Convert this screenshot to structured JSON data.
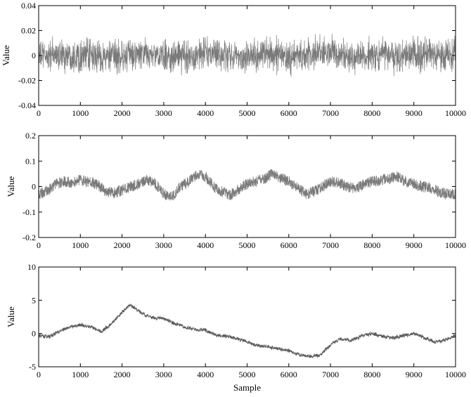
{
  "chart_data": [
    {
      "type": "line",
      "title": "",
      "xlabel": "",
      "ylabel": "Value",
      "xlim": [
        0,
        10000
      ],
      "ylim": [
        -0.04,
        0.04
      ],
      "xticks": [
        0,
        1000,
        2000,
        3000,
        4000,
        5000,
        6000,
        7000,
        8000,
        9000,
        10000
      ],
      "xtick_labels": [
        "0",
        "1000",
        "2000",
        "3000",
        "4000",
        "5000",
        "6000",
        "7000",
        "8000",
        "9000",
        "10000"
      ],
      "yticks": [
        -0.04,
        -0.02,
        0,
        0.02,
        0.04
      ],
      "ytick_labels": [
        "-0.04",
        "-0.02",
        "0",
        "0.02",
        "0.04"
      ],
      "grid": false,
      "legend": "none",
      "series_color": "#7a7a7a",
      "series": [
        {
          "x": [
            0,
            500,
            1000,
            1500,
            2000,
            2500,
            3000,
            3500,
            4000,
            4500,
            5000,
            5500,
            6000,
            6500,
            7000,
            7500,
            8000,
            8500,
            9000,
            9500,
            10000
          ],
          "values": [
            0,
            0.003,
            -0.002,
            0.001,
            -0.003,
            0.002,
            0,
            -0.001,
            0.002,
            -0.002,
            0.001,
            0.003,
            -0.002,
            0,
            0.002,
            -0.001,
            0.001,
            -0.002,
            0.003,
            0,
            -0.001
          ],
          "envelope_high": [
            0.016,
            0.018,
            0.02,
            0.017,
            0.019,
            0.018,
            0.016,
            0.019,
            0.021,
            0.018,
            0.017,
            0.02,
            0.018,
            0.019,
            0.021,
            0.017,
            0.018,
            0.019,
            0.022,
            0.02,
            0.018
          ],
          "envelope_low": [
            -0.017,
            -0.019,
            -0.018,
            -0.02,
            -0.019,
            -0.017,
            -0.018,
            -0.02,
            -0.018,
            -0.017,
            -0.019,
            -0.018,
            -0.02,
            -0.018,
            -0.017,
            -0.019,
            -0.02,
            -0.018,
            -0.021,
            -0.019,
            -0.017
          ]
        }
      ]
    },
    {
      "type": "line",
      "title": "",
      "xlabel": "",
      "ylabel": "Value",
      "xlim": [
        0,
        10000
      ],
      "ylim": [
        -0.2,
        0.2
      ],
      "xticks": [
        0,
        1000,
        2000,
        3000,
        4000,
        5000,
        6000,
        7000,
        8000,
        9000,
        10000
      ],
      "xtick_labels": [
        "0",
        "1000",
        "2000",
        "3000",
        "4000",
        "5000",
        "6000",
        "7000",
        "8000",
        "9000",
        "10000"
      ],
      "yticks": [
        -0.2,
        -0.1,
        0,
        0.1,
        0.2
      ],
      "ytick_labels": [
        "-0.2",
        "-0.1",
        "0",
        "0.1",
        "0.2"
      ],
      "grid": false,
      "legend": "none",
      "series_color": "#7a7a7a",
      "series": [
        {
          "x": [
            0,
            200,
            400,
            600,
            800,
            1000,
            1200,
            1400,
            1600,
            1800,
            2000,
            2200,
            2400,
            2600,
            2800,
            3000,
            3200,
            3400,
            3600,
            3800,
            4000,
            4200,
            4400,
            4600,
            4800,
            5000,
            5200,
            5400,
            5600,
            5800,
            6000,
            6200,
            6400,
            6600,
            6800,
            7000,
            7200,
            7400,
            7600,
            7800,
            8000,
            8200,
            8400,
            8600,
            8800,
            9000,
            9200,
            9400,
            9600,
            9800,
            10000
          ],
          "values": [
            -0.03,
            -0.02,
            0.01,
            0.02,
            0.015,
            0.025,
            0.02,
            0.01,
            -0.02,
            -0.025,
            -0.015,
            0.0,
            0.01,
            0.025,
            0.01,
            -0.03,
            -0.04,
            0.0,
            0.02,
            0.045,
            0.04,
            0.0,
            -0.02,
            -0.035,
            -0.01,
            0.01,
            0.02,
            0.03,
            0.05,
            0.035,
            0.02,
            0.0,
            -0.03,
            -0.02,
            0.0,
            0.02,
            0.015,
            0.0,
            -0.01,
            0.01,
            0.02,
            0.025,
            0.03,
            0.04,
            0.02,
            0.01,
            0.0,
            -0.005,
            -0.02,
            -0.03,
            -0.03
          ],
          "noise_amplitude": 0.022
        }
      ]
    },
    {
      "type": "line",
      "title": "",
      "xlabel": "Sample",
      "ylabel": "Value",
      "xlim": [
        0,
        10000
      ],
      "ylim": [
        -5,
        10
      ],
      "xticks": [
        0,
        1000,
        2000,
        3000,
        4000,
        5000,
        6000,
        7000,
        8000,
        9000,
        10000
      ],
      "xtick_labels": [
        "0",
        "1000",
        "2000",
        "3000",
        "4000",
        "5000",
        "6000",
        "7000",
        "8000",
        "9000",
        "10000"
      ],
      "yticks": [
        -5,
        0,
        5,
        10
      ],
      "ytick_labels": [
        "-5",
        "0",
        "5",
        "10"
      ],
      "grid": false,
      "legend": "none",
      "series_color": "#5a5a5a",
      "series": [
        {
          "x": [
            0,
            250,
            500,
            750,
            1000,
            1250,
            1500,
            1750,
            2000,
            2200,
            2400,
            2600,
            2800,
            3000,
            3250,
            3500,
            3750,
            4000,
            4250,
            4500,
            4750,
            5000,
            5250,
            5500,
            5750,
            6000,
            6250,
            6500,
            6750,
            7000,
            7250,
            7500,
            7750,
            8000,
            8250,
            8500,
            8750,
            9000,
            9250,
            9500,
            9750,
            10000
          ],
          "values": [
            -0.3,
            -0.5,
            0.3,
            1.0,
            1.3,
            1.0,
            0.3,
            1.5,
            3.2,
            4.3,
            3.4,
            2.6,
            2.3,
            2.3,
            1.5,
            1.0,
            0.6,
            0.5,
            -0.2,
            -0.4,
            -0.8,
            -1.2,
            -1.8,
            -2.0,
            -2.3,
            -2.6,
            -3.2,
            -3.4,
            -3.3,
            -1.7,
            -0.8,
            -1.0,
            -0.4,
            0.0,
            -0.4,
            -0.7,
            -0.3,
            0.0,
            -0.6,
            -1.3,
            -1.0,
            -0.3
          ],
          "noise_amplitude": 0.25
        }
      ]
    }
  ]
}
